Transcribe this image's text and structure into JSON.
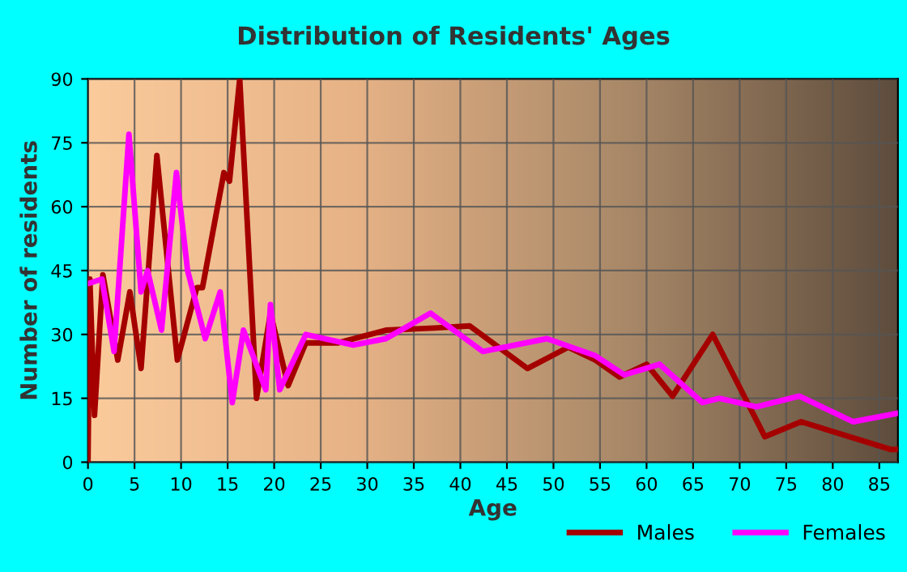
{
  "chart_data": {
    "type": "line",
    "title": "Distribution of Residents' Ages",
    "xlabel": "Age",
    "ylabel": "Number of residents",
    "xlim": [
      0,
      87
    ],
    "xticks": [
      0,
      5,
      10,
      15,
      20,
      25,
      30,
      35,
      40,
      45,
      50,
      55,
      60,
      65,
      70,
      75,
      80,
      85
    ],
    "ylim": [
      0,
      90
    ],
    "yticks": [
      0,
      15,
      30,
      45,
      60,
      75,
      90
    ],
    "grid": true,
    "legend": "bottom right",
    "marker": "none",
    "line_style": "solid",
    "series": [
      {
        "name": "Males",
        "color": "#a50000",
        "x": [
          0,
          0.2,
          0.7,
          1.6,
          3.2,
          4.5,
          5.7,
          7.4,
          9.6,
          11.7,
          12.3,
          14.6,
          15.2,
          16.3,
          18.1,
          19.6,
          21.5,
          23.4,
          26.8,
          32,
          37.2,
          41,
          47.2,
          51.6,
          54.5,
          57.1,
          60,
          62.8,
          67.1,
          72.7,
          76.6,
          86.2,
          87
        ],
        "values": [
          0,
          43,
          11,
          44,
          24,
          40,
          22,
          72,
          24,
          41,
          41,
          68,
          66,
          90,
          15,
          35,
          18,
          28,
          28,
          31,
          31.5,
          32,
          22,
          27,
          24,
          20,
          23,
          15.5,
          30,
          6,
          9.5,
          3,
          3
        ]
      },
      {
        "name": "Females",
        "color": "#ff00ff",
        "x": [
          0.1,
          1.5,
          2.8,
          4.4,
          5.7,
          6.4,
          7.9,
          9.5,
          10.7,
          12.6,
          14.2,
          15.5,
          16.7,
          19.1,
          19.6,
          20.6,
          23.4,
          28.5,
          32,
          36.8,
          42.4,
          49.3,
          54.5,
          57.6,
          61.4,
          66,
          67.8,
          71.8,
          76.4,
          82.2,
          87
        ],
        "values": [
          42,
          43,
          26,
          77,
          40,
          45,
          31,
          68,
          45,
          29,
          40,
          14,
          31,
          17,
          37,
          17,
          30,
          27.5,
          29,
          35,
          26,
          29,
          25,
          20.5,
          23,
          14,
          15,
          13,
          15.5,
          9.5,
          11.5
        ]
      }
    ]
  }
}
